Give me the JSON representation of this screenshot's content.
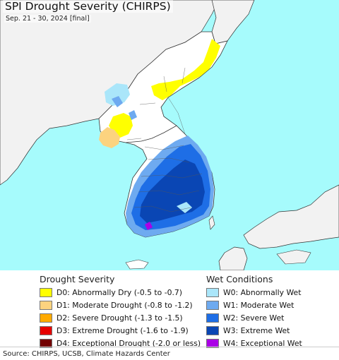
{
  "header": {
    "title": "SPI Drought Severity (CHIRPS)",
    "subtitle": "Sep. 21 - 30, 2024 [final]"
  },
  "colors": {
    "sea": "#a6fbfc",
    "land": "#ffffff",
    "neighbor_land": "#f2f2f2",
    "border": "#333333"
  },
  "legend": {
    "drought_title": "Drought Severity",
    "wet_title": "Wet Conditions",
    "drought_items": [
      {
        "label": "D0: Abnormally Dry (-0.5 to -0.7)",
        "color": "#ffff00"
      },
      {
        "label": "D1: Moderate Drought (-0.8 to -1.2)",
        "color": "#fcd37f"
      },
      {
        "label": "D2: Severe Drought (-1.3 to -1.5)",
        "color": "#ffaa00"
      },
      {
        "label": "D3: Extreme Drought (-1.6 to -1.9)",
        "color": "#e60000"
      },
      {
        "label": "D4: Exceptional Drought (-2.0 or less)",
        "color": "#730000"
      }
    ],
    "wet_items": [
      {
        "label": "W0: Abnormally Wet",
        "color": "#aae6fa"
      },
      {
        "label": "W1: Moderate Wet",
        "color": "#6eaaf0"
      },
      {
        "label": "W2: Severe Wet",
        "color": "#1e6ee6"
      },
      {
        "label": "W3: Extreme Wet",
        "color": "#0a46b4"
      },
      {
        "label": "W4: Exceptional Wet",
        "color": "#aa00e6"
      }
    ]
  },
  "footer": {
    "source": "Source: CHIRPS, UCSB, Climate Hazards Center"
  }
}
